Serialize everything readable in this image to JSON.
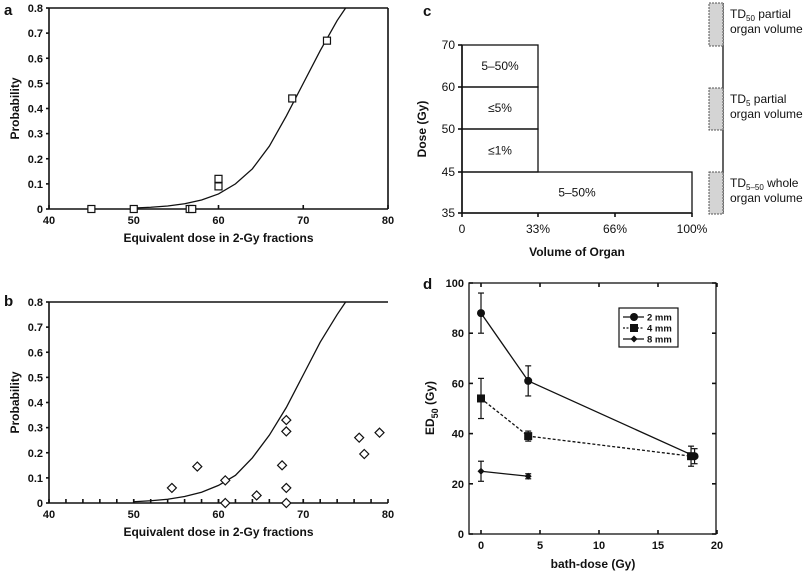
{
  "chart_data": [
    {
      "panel": "a",
      "type": "scatter",
      "xlabel": "Equivalent dose in 2-Gy fractions",
      "ylabel": "Probability",
      "xlim": [
        40,
        80
      ],
      "ylim": [
        0,
        0.8
      ],
      "xticks": [
        "40",
        "50",
        "60",
        "70",
        "80"
      ],
      "yticks": [
        "0",
        "0.1",
        "0.2",
        "0.3",
        "0.4",
        "0.5",
        "0.6",
        "0.7",
        "0.8"
      ],
      "points": [
        [
          45,
          0
        ],
        [
          50,
          0
        ],
        [
          56.6,
          0
        ],
        [
          56.9,
          0
        ],
        [
          60,
          0.12
        ],
        [
          60,
          0.09
        ],
        [
          68.7,
          0.44
        ],
        [
          72.8,
          0.67
        ]
      ],
      "marker": "square",
      "curve": [
        [
          50,
          0.004
        ],
        [
          52,
          0.007
        ],
        [
          54,
          0.012
        ],
        [
          56,
          0.021
        ],
        [
          58,
          0.036
        ],
        [
          60,
          0.06
        ],
        [
          62,
          0.1
        ],
        [
          64,
          0.16
        ],
        [
          66,
          0.25
        ],
        [
          68,
          0.37
        ],
        [
          70,
          0.5
        ],
        [
          72,
          0.63
        ],
        [
          74,
          0.75
        ],
        [
          75,
          0.8
        ]
      ]
    },
    {
      "panel": "b",
      "type": "scatter",
      "xlabel": "Equivalent dose in 2-Gy fractions",
      "ylabel": "Probability",
      "xlim": [
        40,
        80
      ],
      "ylim": [
        0,
        0.8
      ],
      "xticks": [
        "40",
        "50",
        "60",
        "70",
        "80"
      ],
      "yticks": [
        "0",
        "0.1",
        "0.2",
        "0.3",
        "0.4",
        "0.5",
        "0.6",
        "0.7",
        "0.8"
      ],
      "points": [
        [
          54.5,
          0.06
        ],
        [
          57.5,
          0.145
        ],
        [
          60.8,
          0.09
        ],
        [
          60.8,
          0
        ],
        [
          64.5,
          0.03
        ],
        [
          67.5,
          0.15
        ],
        [
          68,
          0.33
        ],
        [
          68,
          0.285
        ],
        [
          68,
          0.06
        ],
        [
          68,
          0
        ],
        [
          76.6,
          0.26
        ],
        [
          77.2,
          0.195
        ],
        [
          79,
          0.28
        ]
      ],
      "marker": "diamond",
      "curve": [
        [
          50,
          0.005
        ],
        [
          52,
          0.009
        ],
        [
          54,
          0.015
        ],
        [
          56,
          0.026
        ],
        [
          58,
          0.043
        ],
        [
          60,
          0.07
        ],
        [
          62,
          0.11
        ],
        [
          64,
          0.18
        ],
        [
          66,
          0.27
        ],
        [
          68,
          0.38
        ],
        [
          70,
          0.51
        ],
        [
          72,
          0.64
        ],
        [
          74,
          0.75
        ],
        [
          75,
          0.8
        ]
      ]
    },
    {
      "panel": "c",
      "type": "bar",
      "xlabel": "Volume of Organ",
      "ylabel": "Dose (Gy)",
      "xticks": [
        "0",
        "33%",
        "66%",
        "100%"
      ],
      "yticks": [
        "35",
        "45",
        "50",
        "60",
        "70"
      ],
      "regions": [
        {
          "label": "5–50%",
          "volume": [
            0,
            33
          ],
          "dose": [
            60,
            70
          ]
        },
        {
          "label": "≤5%",
          "volume": [
            0,
            33
          ],
          "dose": [
            50,
            60
          ]
        },
        {
          "label": "≤1%",
          "volume": [
            0,
            33
          ],
          "dose": [
            45,
            50
          ]
        },
        {
          "label": "5–50%",
          "volume": [
            0,
            100
          ],
          "dose": [
            35,
            45
          ]
        }
      ],
      "legend": [
        {
          "main": "TD",
          "sub": "50",
          "rest": " partial",
          "line2": "organ volume"
        },
        {
          "main": "TD",
          "sub": "5",
          "rest": " partial",
          "line2": "organ volume"
        },
        {
          "main": "TD",
          "sub": "5–50",
          "rest": " whole",
          "line2": "organ volume"
        }
      ]
    },
    {
      "panel": "d",
      "type": "line",
      "xlabel": "bath-dose (Gy)",
      "ylabel_main": "ED",
      "ylabel_sub": "50",
      "ylabel_rest": " (Gy)",
      "xlim": [
        -2,
        20
      ],
      "ylim": [
        0,
        100
      ],
      "xticks": [
        "0",
        "5",
        "10",
        "15",
        "20"
      ],
      "yticks": [
        "0",
        "20",
        "40",
        "60",
        "80",
        "100"
      ],
      "legend_position": "top-right",
      "series": [
        {
          "name": "2 mm",
          "marker": "circle",
          "dash": "solid",
          "x": [
            0,
            4,
            18.1
          ],
          "y": [
            88,
            61,
            31
          ],
          "err": [
            8,
            6,
            3
          ]
        },
        {
          "name": "4 mm",
          "marker": "square",
          "dash": "dashed",
          "x": [
            0,
            4,
            17.8
          ],
          "y": [
            54,
            39,
            31
          ],
          "err": [
            8,
            2,
            4
          ]
        },
        {
          "name": "8 mm",
          "marker": "diamond",
          "dash": "solid",
          "x": [
            0,
            4
          ],
          "y": [
            25,
            23
          ],
          "err": [
            4,
            1
          ]
        }
      ]
    }
  ]
}
